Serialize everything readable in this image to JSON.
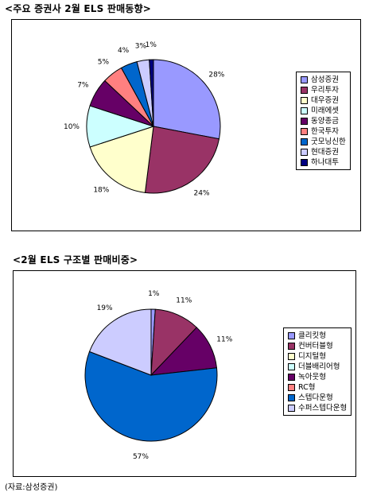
{
  "source": "(자료:삼성증권)",
  "chart_data": [
    {
      "type": "pie",
      "title": "<주요 증권사 2월 ELS 판매동향>",
      "categories": [
        "삼성증권",
        "우리투자",
        "대우증권",
        "미래에셋",
        "동양종금",
        "한국투자",
        "굿모닝신한",
        "현대증권",
        "하나대투"
      ],
      "values": [
        28,
        24,
        18,
        10,
        7,
        5,
        4,
        3,
        1
      ],
      "labels": [
        "28%",
        "24%",
        "18%",
        "10%",
        "7%",
        "5%",
        "4%",
        "3%",
        "1%"
      ],
      "colors": [
        "#9999FF",
        "#993366",
        "#FFFFCC",
        "#CCFFFF",
        "#660066",
        "#FF8080",
        "#0066CC",
        "#CCCCFF",
        "#000080"
      ],
      "legend_position": "right"
    },
    {
      "type": "pie",
      "title": "<2월 ELS 구조별 판매비중>",
      "categories": [
        "클리킷형",
        "컨버터블형",
        "디지털형",
        "더블배리어형",
        "녹아웃형",
        "RC형",
        "스텝다운형",
        "수퍼스텝다운형"
      ],
      "values": [
        1,
        11,
        0,
        0,
        11,
        0,
        57,
        19
      ],
      "labels": [
        "1%",
        "11%",
        "",
        "",
        "11%",
        "",
        "57%",
        "19%"
      ],
      "colors": [
        "#9999FF",
        "#993366",
        "#FFFFCC",
        "#CCFFFF",
        "#660066",
        "#FF8080",
        "#0066CC",
        "#CCCCFF"
      ],
      "legend_position": "right"
    }
  ]
}
